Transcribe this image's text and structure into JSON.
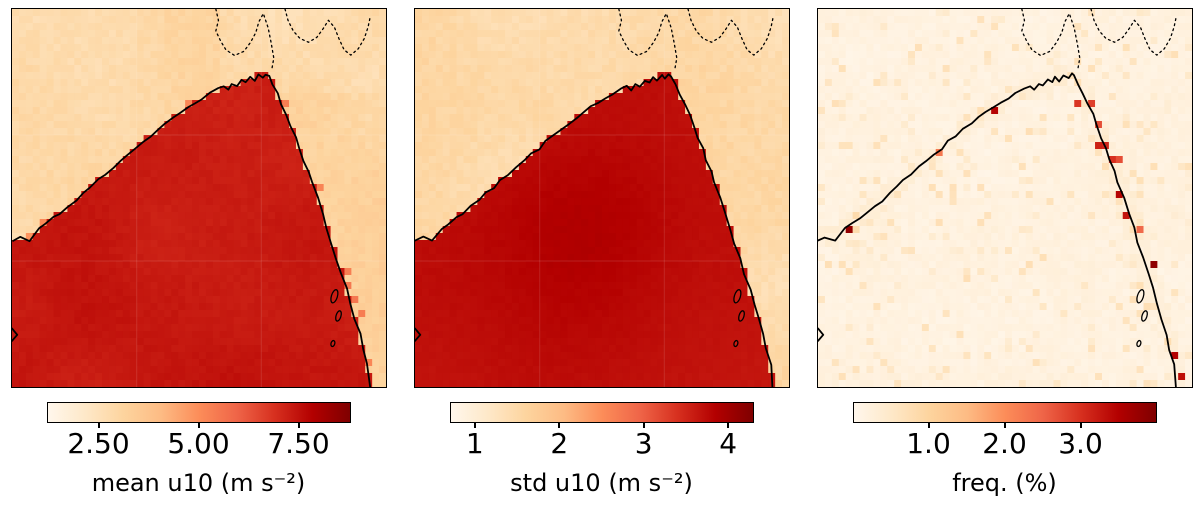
{
  "chart_data": [
    {
      "type": "heatmap",
      "panel": "left",
      "xlabel": "mean u10 (m s⁻²)",
      "colormap": "OrRd",
      "vmin": 1.2,
      "vmax": 8.8,
      "colorbar_ticks": [
        {
          "value": 2.5,
          "label": "2.50"
        },
        {
          "value": 5.0,
          "label": "5.00"
        },
        {
          "value": 7.5,
          "label": "7.50"
        }
      ],
      "approx_field": {
        "sea": 7.6,
        "coastal_land": 3.4,
        "inland": 2.7
      },
      "region": "Bay of Bengal coastal region with solid coastline, dotted country borders and small offshore islands",
      "legend_position": "bottom-colorbar",
      "grid": false
    },
    {
      "type": "heatmap",
      "panel": "middle",
      "xlabel": "std u10 (m s⁻²)",
      "colormap": "OrRd",
      "vmin": 0.7,
      "vmax": 4.3,
      "colorbar_ticks": [
        {
          "value": 1,
          "label": "1"
        },
        {
          "value": 2,
          "label": "2"
        },
        {
          "value": 3,
          "label": "3"
        },
        {
          "value": 4,
          "label": "4"
        }
      ],
      "approx_field": {
        "sea": 3.7,
        "land": 1.2
      },
      "region": "Bay of Bengal coastal region",
      "legend_position": "bottom-colorbar",
      "grid": false
    },
    {
      "type": "heatmap",
      "panel": "right",
      "xlabel": "freq. (%)",
      "colormap": "OrRd",
      "vmin": 0.0,
      "vmax": 4.0,
      "colorbar_ticks": [
        {
          "value": 1.0,
          "label": "1.0"
        },
        {
          "value": 2.0,
          "label": "2.0"
        },
        {
          "value": 3.0,
          "label": "3.0"
        }
      ],
      "approx_field": {
        "background": 0.1,
        "scattered_speckles": 0.5,
        "coastal_hotspots": 3.5
      },
      "region": "Bay of Bengal coastal region, mostly near-zero with isolated coastal hotspots",
      "legend_position": "bottom-colorbar",
      "grid": false
    }
  ],
  "colors": {
    "colormap_stops": [
      "#fff7ec",
      "#fee8c8",
      "#fdd49e",
      "#fdbb84",
      "#fc8d59",
      "#ef6548",
      "#d7301f",
      "#b30000",
      "#7f0000"
    ],
    "coastline": "#000000",
    "country_border": "#000000",
    "figure_background": "#ffffff",
    "panel_frame": "#000000"
  }
}
